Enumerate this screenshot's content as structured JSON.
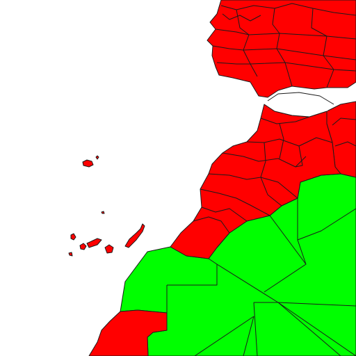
{
  "map": {
    "background_color": "#ffffff",
    "categories": [
      {
        "name": "highlighted",
        "color": "#ff0000"
      },
      {
        "name": "other",
        "color": "#00ff00"
      }
    ],
    "region_categories": {
      "iberia-region": "highlighted",
      "north-africa-east-region": "highlighted",
      "morocco-region": "highlighted",
      "western-sahara-south-region": "highlighted",
      "canary-islands-region": "highlighted",
      "madeira-region": "highlighted",
      "sahara-interior-region": "other"
    }
  }
}
